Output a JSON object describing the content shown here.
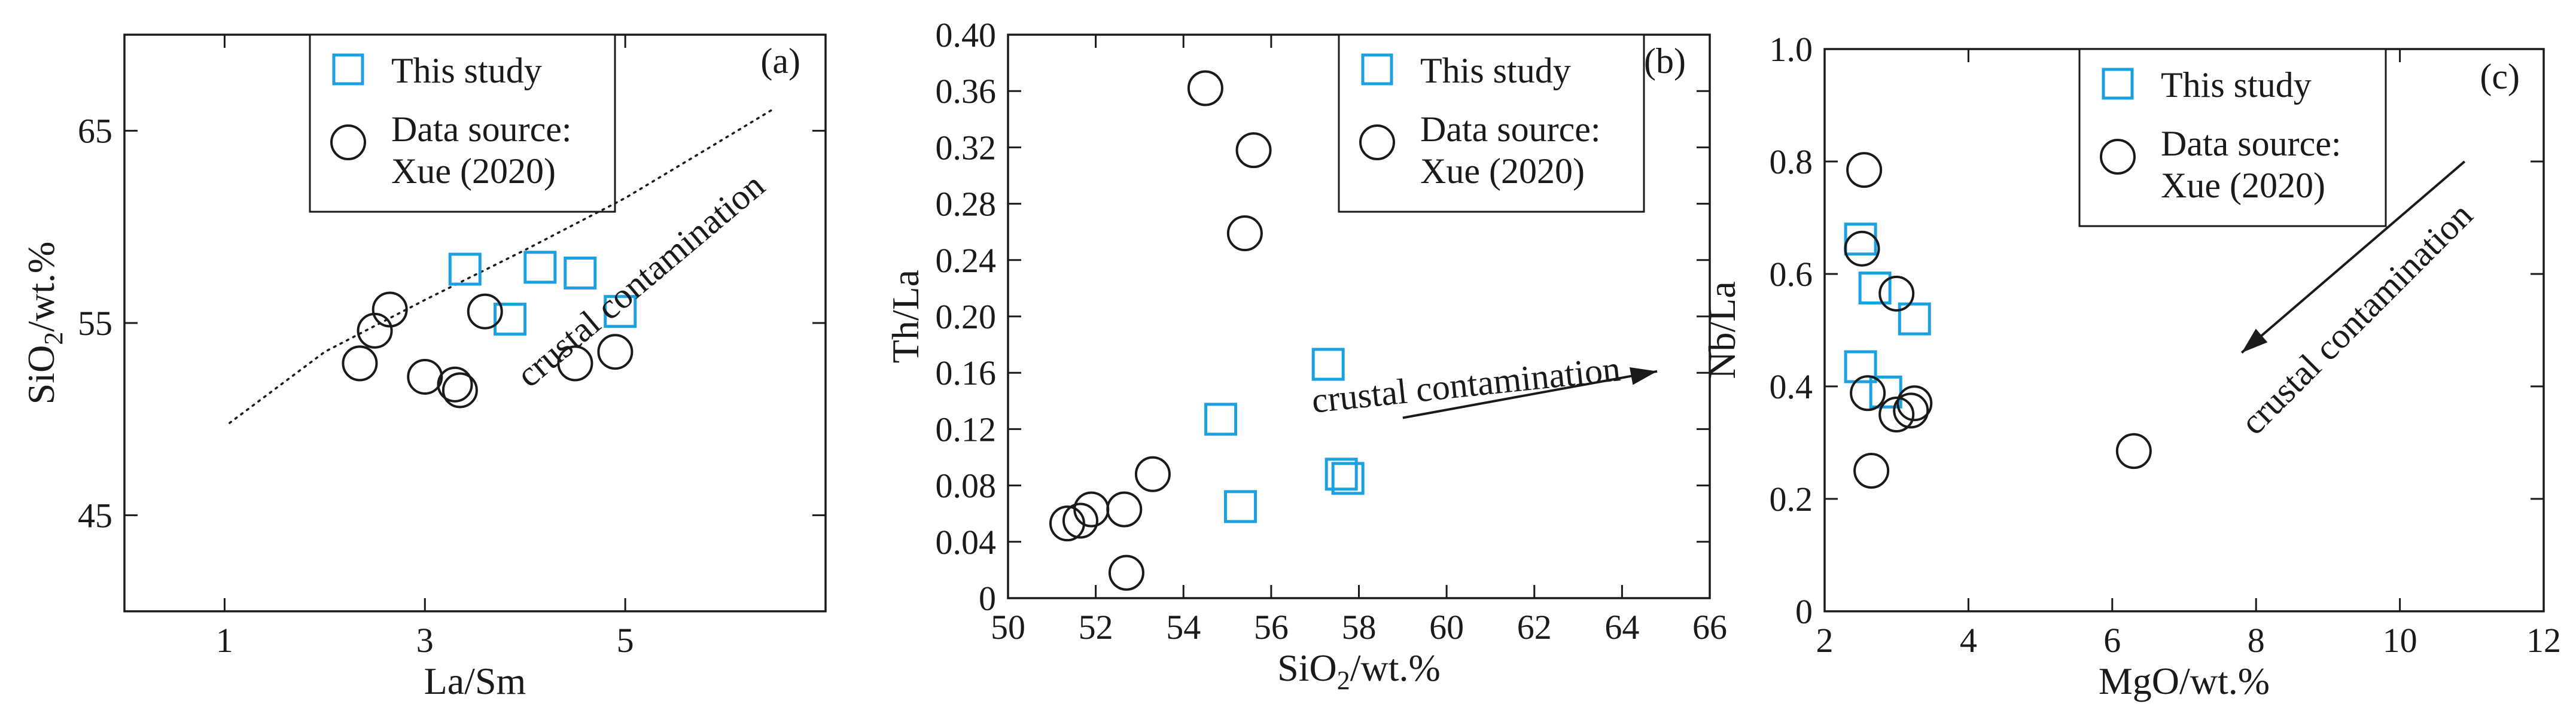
{
  "colors": {
    "this_study": "#1ba1e2",
    "data_source": "#1a1a1a",
    "axes": "#1a1a1a"
  },
  "chart_data": [
    {
      "panel": "(a)",
      "type": "scatter",
      "xlabel": "La/Sm",
      "ylabel_main": "SiO",
      "ylabel_sub": "2",
      "ylabel_tail": "/wt.%",
      "xlim": [
        0,
        7
      ],
      "ylim": [
        40,
        70
      ],
      "xticks": [
        1,
        3,
        5
      ],
      "xtick_labels": [
        "1",
        "3",
        "5"
      ],
      "yticks": [
        45,
        55,
        65
      ],
      "ytick_labels": [
        "45",
        "55",
        "65"
      ],
      "legend": {
        "this_study": "This study",
        "source_line1": "Data source:",
        "source_line2": "Xue (2020)"
      },
      "annotation": "crustal contamination",
      "trend_line": [
        [
          1.05,
          49.8
        ],
        [
          2.0,
          53.5
        ],
        [
          3.0,
          56.2
        ],
        [
          4.0,
          58.8
        ],
        [
          5.0,
          61.5
        ],
        [
          5.8,
          64.0
        ],
        [
          6.5,
          66.2
        ]
      ],
      "series": [
        {
          "name": "This study",
          "marker": "square",
          "x": [
            3.4,
            3.85,
            4.15,
            4.55,
            4.95
          ],
          "y": [
            57.8,
            55.2,
            57.9,
            57.6,
            55.6
          ]
        },
        {
          "name": "Xue (2020)",
          "marker": "circle",
          "x": [
            2.35,
            2.5,
            2.65,
            3.0,
            3.3,
            3.35,
            3.6,
            4.5,
            4.9
          ],
          "y": [
            52.9,
            54.6,
            55.7,
            52.2,
            51.8,
            51.5,
            55.6,
            52.9,
            53.5
          ]
        }
      ]
    },
    {
      "panel": "(b)",
      "type": "scatter",
      "xlabel_main": "SiO",
      "xlabel_sub": "2",
      "xlabel_tail": "/wt.%",
      "ylabel": "Th/La",
      "xlim": [
        50,
        66
      ],
      "ylim": [
        0,
        0.4
      ],
      "xticks": [
        50,
        52,
        54,
        56,
        58,
        60,
        62,
        64,
        66
      ],
      "xtick_labels": [
        "50",
        "52",
        "54",
        "56",
        "58",
        "60",
        "62",
        "64",
        "66"
      ],
      "yticks": [
        0,
        0.04,
        0.08,
        0.12,
        0.16,
        0.2,
        0.24,
        0.28,
        0.32,
        0.36,
        0.4
      ],
      "ytick_labels": [
        "0",
        "0.04",
        "0.08",
        "0.12",
        "0.16",
        "0.20",
        "0.24",
        "0.28",
        "0.32",
        "0.36",
        "0.40"
      ],
      "legend": {
        "this_study": "This study",
        "source_line1": "Data source:",
        "source_line2": "Xue (2020)"
      },
      "annotation": "crustal contamination",
      "arrow": {
        "from": [
          59.0,
          0.128
        ],
        "to": [
          64.8,
          0.161
        ]
      },
      "series": [
        {
          "name": "This study",
          "marker": "square",
          "x": [
            54.85,
            55.3,
            57.3,
            57.6,
            57.75
          ],
          "y": [
            0.127,
            0.065,
            0.166,
            0.088,
            0.085
          ]
        },
        {
          "name": "Xue (2020)",
          "marker": "circle",
          "x": [
            51.35,
            51.65,
            51.9,
            52.65,
            52.7,
            53.3,
            54.5,
            55.4,
            55.6
          ],
          "y": [
            0.053,
            0.055,
            0.063,
            0.063,
            0.018,
            0.088,
            0.362,
            0.259,
            0.318
          ]
        }
      ]
    },
    {
      "panel": "(c)",
      "type": "scatter",
      "xlabel": "MgO/wt.%",
      "ylabel": "Nb/La",
      "xlim": [
        2,
        12
      ],
      "ylim": [
        0,
        1
      ],
      "xticks": [
        2,
        4,
        6,
        8,
        10,
        12
      ],
      "xtick_labels": [
        "2",
        "4",
        "6",
        "8",
        "10",
        "12"
      ],
      "yticks": [
        0,
        0.2,
        0.4,
        0.6,
        0.8,
        1.0
      ],
      "ytick_labels": [
        "0",
        "0.2",
        "0.4",
        "0.6",
        "0.8",
        "1.0"
      ],
      "legend": {
        "this_study": "This study",
        "source_line1": "Data source:",
        "source_line2": "Xue (2020)"
      },
      "annotation": "crustal contamination",
      "arrow": {
        "from": [
          10.9,
          0.8
        ],
        "to": [
          7.8,
          0.46
        ]
      },
      "series": [
        {
          "name": "This study",
          "marker": "square",
          "x": [
            2.5,
            2.5,
            2.7,
            2.85,
            3.25
          ],
          "y": [
            0.662,
            0.435,
            0.575,
            0.39,
            0.52
          ]
        },
        {
          "name": "Xue (2020)",
          "marker": "circle",
          "x": [
            2.55,
            2.52,
            2.6,
            2.65,
            3.0,
            3.0,
            3.2,
            3.25,
            6.3
          ],
          "y": [
            0.785,
            0.645,
            0.388,
            0.25,
            0.565,
            0.35,
            0.357,
            0.37,
            0.285
          ]
        }
      ]
    }
  ]
}
